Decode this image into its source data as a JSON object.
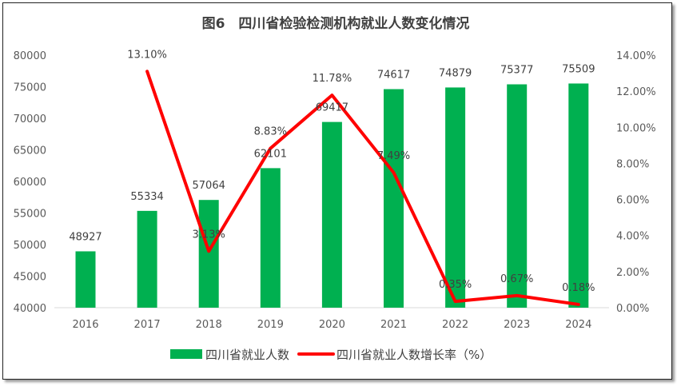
{
  "chart_data": {
    "type": "bar+line",
    "title": "图6　四川省检验检测机构就业人数变化情况",
    "categories": [
      "2016",
      "2017",
      "2018",
      "2019",
      "2020",
      "2021",
      "2022",
      "2023",
      "2024"
    ],
    "series": [
      {
        "name": "四川省就业人数",
        "type": "bar",
        "axis": "left",
        "color": "#00B050",
        "values": [
          48927,
          55334,
          57064,
          62101,
          69417,
          74617,
          74879,
          75377,
          75509
        ],
        "labels": [
          "48927",
          "55334",
          "57064",
          "62101",
          "69417",
          "74617",
          "74879",
          "75377",
          "75509"
        ]
      },
      {
        "name": "四川省就业人数增长率（%）",
        "type": "line",
        "axis": "right",
        "color": "#FF0000",
        "values": [
          null,
          13.1,
          3.13,
          8.83,
          11.78,
          7.49,
          0.35,
          0.67,
          0.18
        ],
        "labels": [
          "",
          "13.10%",
          "3.13%",
          "8.83%",
          "11.78%",
          "7.49%",
          "0.35%",
          "0.67%",
          "0.18%"
        ]
      }
    ],
    "y_left": {
      "range": [
        40000,
        80000
      ],
      "ticks": [
        "40000",
        "45000",
        "50000",
        "55000",
        "60000",
        "65000",
        "70000",
        "75000",
        "80000"
      ]
    },
    "y_right": {
      "range": [
        0,
        14
      ],
      "ticks": [
        "0.00%",
        "2.00%",
        "4.00%",
        "6.00%",
        "8.00%",
        "10.00%",
        "12.00%",
        "14.00%"
      ]
    },
    "grid": false,
    "legend": "bottom"
  }
}
